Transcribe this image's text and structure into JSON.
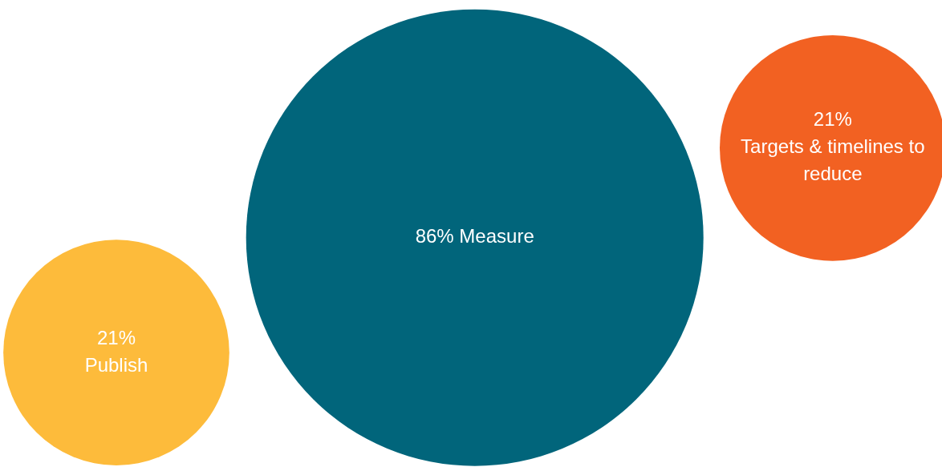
{
  "chart_data": {
    "type": "other",
    "categories": [
      "Publish",
      "Measure",
      "Targets & timelines to reduce"
    ],
    "values": [
      21,
      86,
      21
    ],
    "value_labels": [
      "21%",
      "86%",
      "21%"
    ],
    "colors": [
      "#fdbb3b",
      "#01657b",
      "#f26122"
    ]
  }
}
